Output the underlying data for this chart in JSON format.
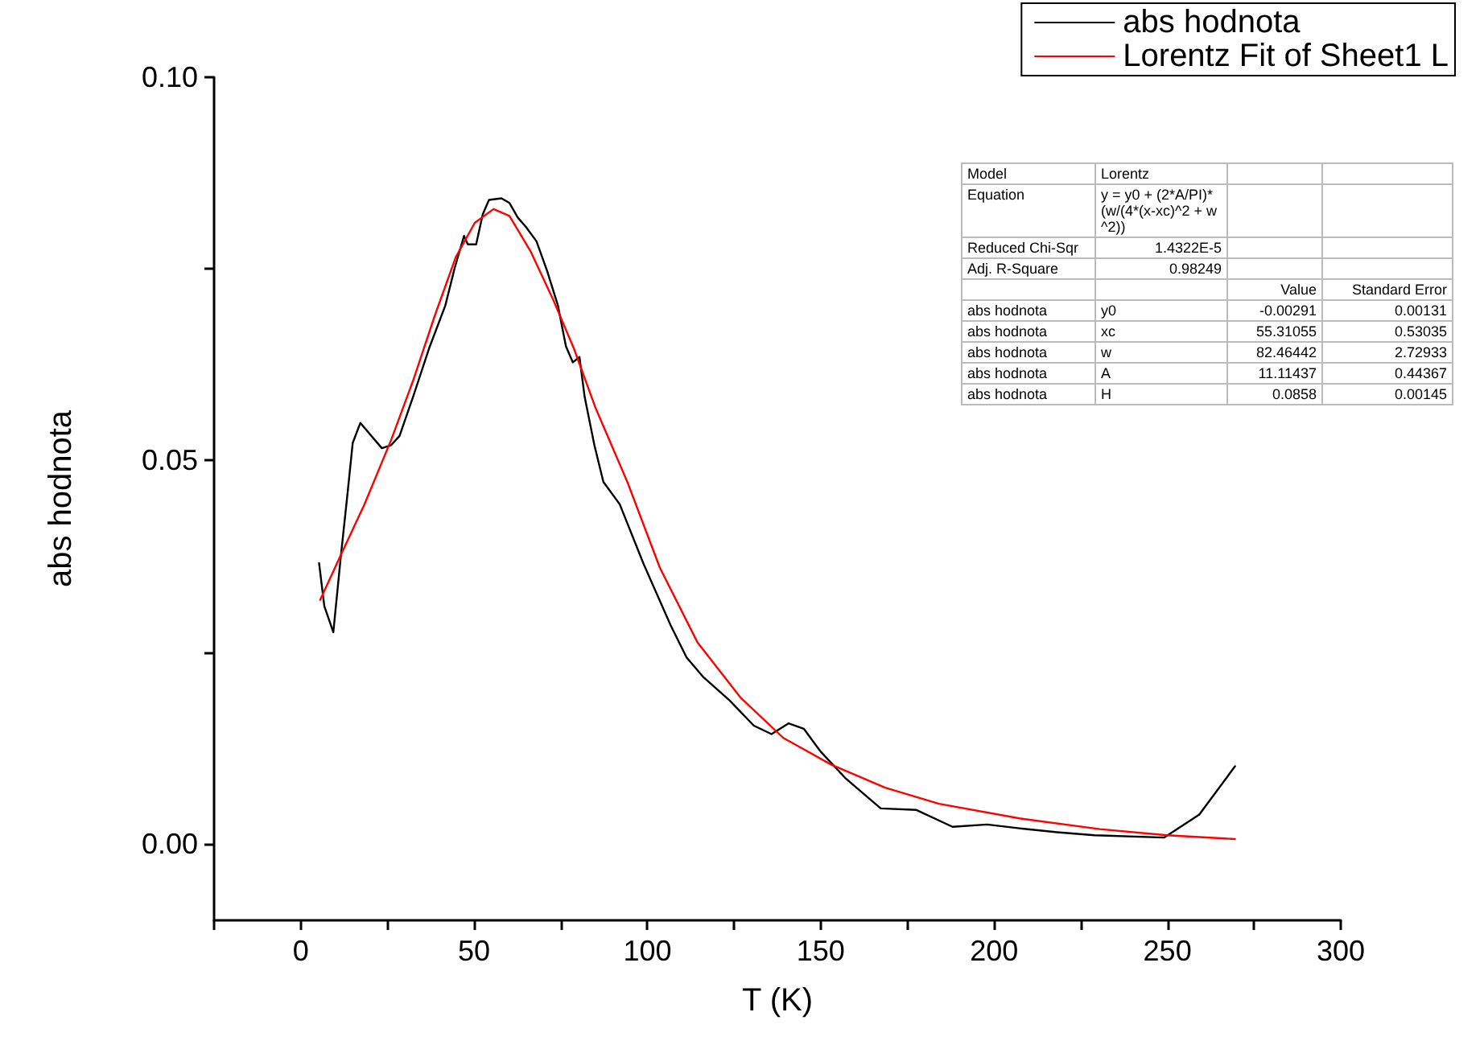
{
  "chart_data": [
    {
      "type": "line",
      "xlabel": "T (K)",
      "ylabel": "abs hodnota",
      "xlim": [
        -25,
        300
      ],
      "ylim": [
        -0.01,
        0.1
      ],
      "xticks": [
        {
          "value": -25,
          "label": null
        },
        0,
        {
          "value": 25,
          "label": null
        },
        50,
        {
          "value": 75,
          "label": null
        },
        100,
        {
          "value": 125,
          "label": null
        },
        150,
        {
          "value": 175,
          "label": null
        },
        200,
        {
          "value": 225,
          "label": null
        },
        250,
        {
          "value": 275,
          "label": null
        },
        300
      ],
      "yticks": [
        {
          "value": 0,
          "label": "0.00"
        },
        {
          "value": 0.025,
          "label": null
        },
        {
          "value": 0.05,
          "label": "0.05"
        },
        {
          "value": 0.075,
          "label": null
        },
        {
          "value": 0.1,
          "label": "0.10"
        }
      ],
      "grid": false,
      "legend": "top right",
      "marker": "none",
      "line_style": "solid",
      "series": [
        {
          "name": "abs hodnota",
          "color": "#000000",
          "x": [
            5.3,
            6.8,
            9.4,
            11.5,
            13.5,
            15,
            17.2,
            23.4,
            26.1,
            28.5,
            32.4,
            37,
            41.7,
            44.4,
            47.1,
            48.2,
            50.6,
            52.5,
            54.3,
            57.9,
            60.2,
            62.6,
            64.9,
            68,
            71.1,
            74.2,
            76.5,
            78.5,
            80.4,
            81.9,
            84.7,
            87.3,
            92,
            98.9,
            106.7,
            111.3,
            116,
            123.7,
            130.7,
            135.8,
            140.7,
            145.1,
            150,
            157,
            167.3,
            177.6,
            188,
            198,
            207.3,
            218.2,
            229,
            249.1,
            259.2,
            269.5
          ],
          "values": [
            0.0366,
            0.031,
            0.0276,
            0.0372,
            0.0457,
            0.0523,
            0.0549,
            0.0516,
            0.052,
            0.0532,
            0.0583,
            0.0646,
            0.0702,
            0.0751,
            0.0793,
            0.0782,
            0.0782,
            0.0821,
            0.084,
            0.0842,
            0.0836,
            0.0817,
            0.0805,
            0.0786,
            0.0747,
            0.0702,
            0.0649,
            0.0628,
            0.0635,
            0.0583,
            0.052,
            0.0472,
            0.0443,
            0.0365,
            0.0285,
            0.0243,
            0.0218,
            0.0187,
            0.0154,
            0.0143,
            0.0157,
            0.015,
            0.012,
            0.0086,
            0.0046,
            0.0044,
            0.0022,
            0.0025,
            0.002,
            0.0015,
            0.0011,
            0.0008,
            0.0038,
            0.0101
          ]
        },
        {
          "name": "Lorentz Fit of Sheet1 L",
          "color": "#ff0000",
          "x": [
            5.6,
            11.5,
            18.4,
            26.1,
            32.4,
            38.6,
            44.7,
            50.2,
            55.6,
            60.2,
            66.4,
            72.6,
            78.8,
            85,
            94.3,
            103.6,
            114.4,
            126.8,
            139.2,
            153.1,
            168.6,
            184.1,
            207.3,
            230.5,
            249.9,
            269.5
          ],
          "values": [
            0.0318,
            0.0376,
            0.0443,
            0.0527,
            0.0604,
            0.0688,
            0.0765,
            0.081,
            0.0828,
            0.0819,
            0.0772,
            0.0712,
            0.0646,
            0.0569,
            0.0471,
            0.036,
            0.0263,
            0.0191,
            0.0138,
            0.0103,
            0.0073,
            0.0052,
            0.0033,
            0.0019,
            0.0011,
            0.0006
          ]
        }
      ]
    },
    {
      "type": "other",
      "cell_labels": [
        [
          "Model",
          "Lorentz",
          null,
          null
        ],
        [
          "Equation",
          "y = y0 + (2*A/PI)*(w/(4*(x-xc)^2 + w^2))",
          null,
          null
        ],
        [
          "Reduced Chi-Sqr",
          "1.4322E-5",
          null,
          null
        ],
        [
          "Adj. R-Square",
          "0.98249",
          null,
          null
        ],
        [
          null,
          null,
          "Value",
          "Standard Error"
        ],
        [
          "abs hodnota",
          "y0",
          "-0.00291",
          "0.00131"
        ],
        [
          "abs hodnota",
          "xc",
          "55.31055",
          "0.53035"
        ],
        [
          "abs hodnota",
          "w",
          "82.46442",
          "2.72933"
        ],
        [
          "abs hodnota",
          "A",
          "11.11437",
          "0.44367"
        ],
        [
          "abs hodnota",
          "H",
          "0.0858",
          "0.00145"
        ]
      ]
    }
  ]
}
